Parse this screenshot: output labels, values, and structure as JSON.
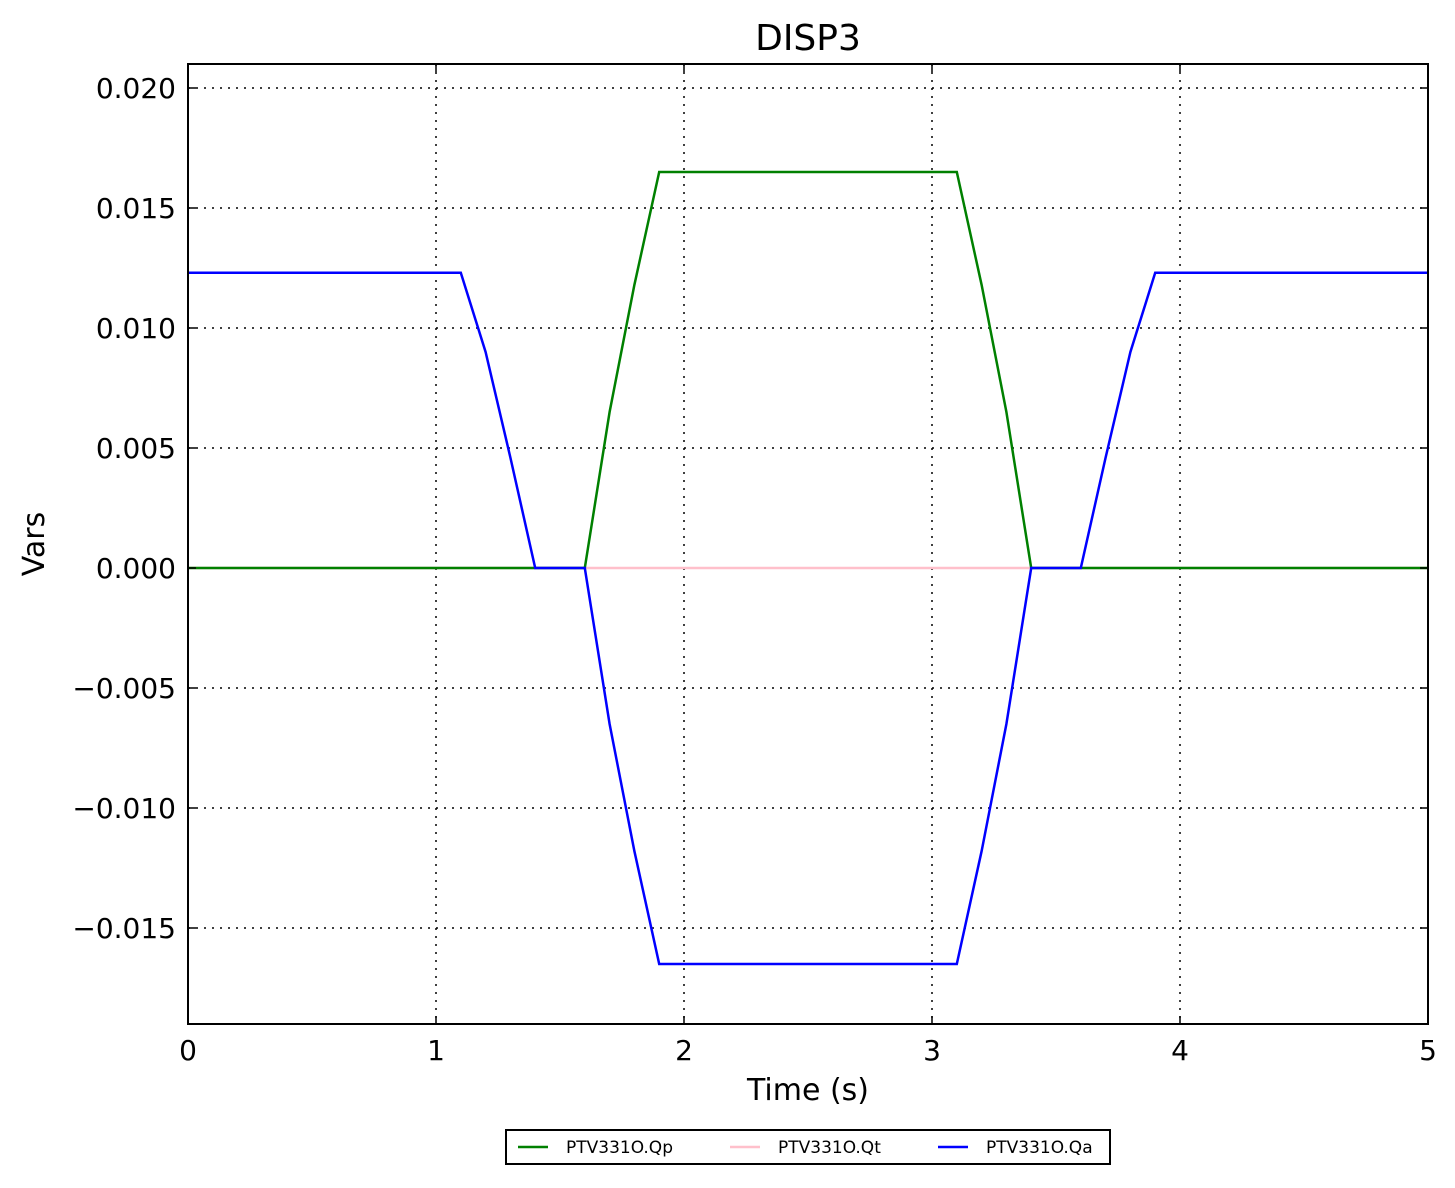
{
  "chart_data": {
    "type": "line",
    "title": "DISP3",
    "xlabel": "Time (s)",
    "ylabel": "Vars",
    "xlim": [
      0,
      5
    ],
    "ylim": [
      -0.019,
      0.021
    ],
    "xticks": [
      0,
      1,
      2,
      3,
      4,
      5
    ],
    "xtick_labels": [
      "0",
      "1",
      "2",
      "3",
      "4",
      "5"
    ],
    "yticks": [
      -0.015,
      -0.01,
      -0.005,
      0.0,
      0.005,
      0.01,
      0.015,
      0.02
    ],
    "ytick_labels": [
      "−0.015",
      "−0.010",
      "−0.005",
      "0.000",
      "0.005",
      "0.010",
      "0.015",
      "0.020"
    ],
    "grid": true,
    "legend_placement": "bottom-center-outside",
    "series": [
      {
        "name": "PTV331O.Qp",
        "color": "#008000",
        "x": [
          0,
          1.6,
          1.7,
          1.8,
          1.9,
          3.1,
          3.2,
          3.3,
          3.4,
          5
        ],
        "y": [
          0,
          0,
          0.0065,
          0.0118,
          0.0165,
          0.0165,
          0.0118,
          0.0065,
          0,
          0
        ]
      },
      {
        "name": "PTV331O.Qt",
        "color": "#ffc0cb",
        "x": [
          0,
          5
        ],
        "y": [
          0,
          0
        ]
      },
      {
        "name": "PTV331O.Qa",
        "color": "#0000ff",
        "x": [
          0,
          1.1,
          1.2,
          1.3,
          1.4,
          1.6,
          1.7,
          1.8,
          1.9,
          3.1,
          3.2,
          3.3,
          3.4,
          3.6,
          3.7,
          3.8,
          3.9,
          5
        ],
        "y": [
          0.0123,
          0.0123,
          0.009,
          0.0046,
          0,
          0,
          -0.0065,
          -0.0118,
          -0.0165,
          -0.0165,
          -0.0118,
          -0.0065,
          0,
          0,
          0.0046,
          0.009,
          0.0123,
          0.0123
        ]
      }
    ]
  }
}
